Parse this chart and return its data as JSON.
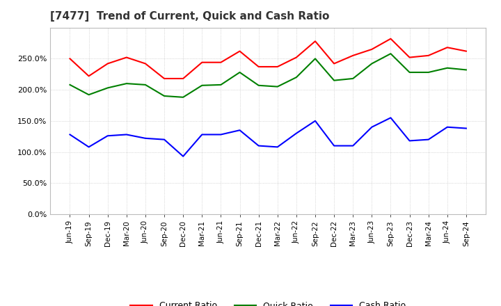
{
  "title": "[7477]  Trend of Current, Quick and Cash Ratio",
  "x_labels": [
    "Jun-19",
    "Sep-19",
    "Dec-19",
    "Mar-20",
    "Jun-20",
    "Sep-20",
    "Dec-20",
    "Mar-21",
    "Jun-21",
    "Sep-21",
    "Dec-21",
    "Mar-22",
    "Jun-22",
    "Sep-22",
    "Dec-22",
    "Mar-23",
    "Jun-23",
    "Sep-23",
    "Dec-23",
    "Mar-24",
    "Jun-24",
    "Sep-24"
  ],
  "current_ratio": [
    250,
    222,
    242,
    252,
    242,
    218,
    218,
    244,
    244,
    262,
    237,
    237,
    252,
    278,
    242,
    255,
    265,
    282,
    252,
    255,
    268,
    262
  ],
  "quick_ratio": [
    208,
    192,
    203,
    210,
    208,
    190,
    188,
    207,
    208,
    228,
    207,
    205,
    220,
    250,
    215,
    218,
    242,
    258,
    228,
    228,
    235,
    232
  ],
  "cash_ratio": [
    128,
    108,
    126,
    128,
    122,
    120,
    93,
    128,
    128,
    135,
    110,
    108,
    130,
    150,
    110,
    110,
    140,
    155,
    118,
    120,
    140,
    138
  ],
  "current_color": "#ff0000",
  "quick_color": "#008000",
  "cash_color": "#0000ff",
  "ylim": [
    0,
    300
  ],
  "yticks": [
    0,
    50,
    100,
    150,
    200,
    250
  ],
  "background_color": "#ffffff",
  "grid_color": "#aaaaaa"
}
